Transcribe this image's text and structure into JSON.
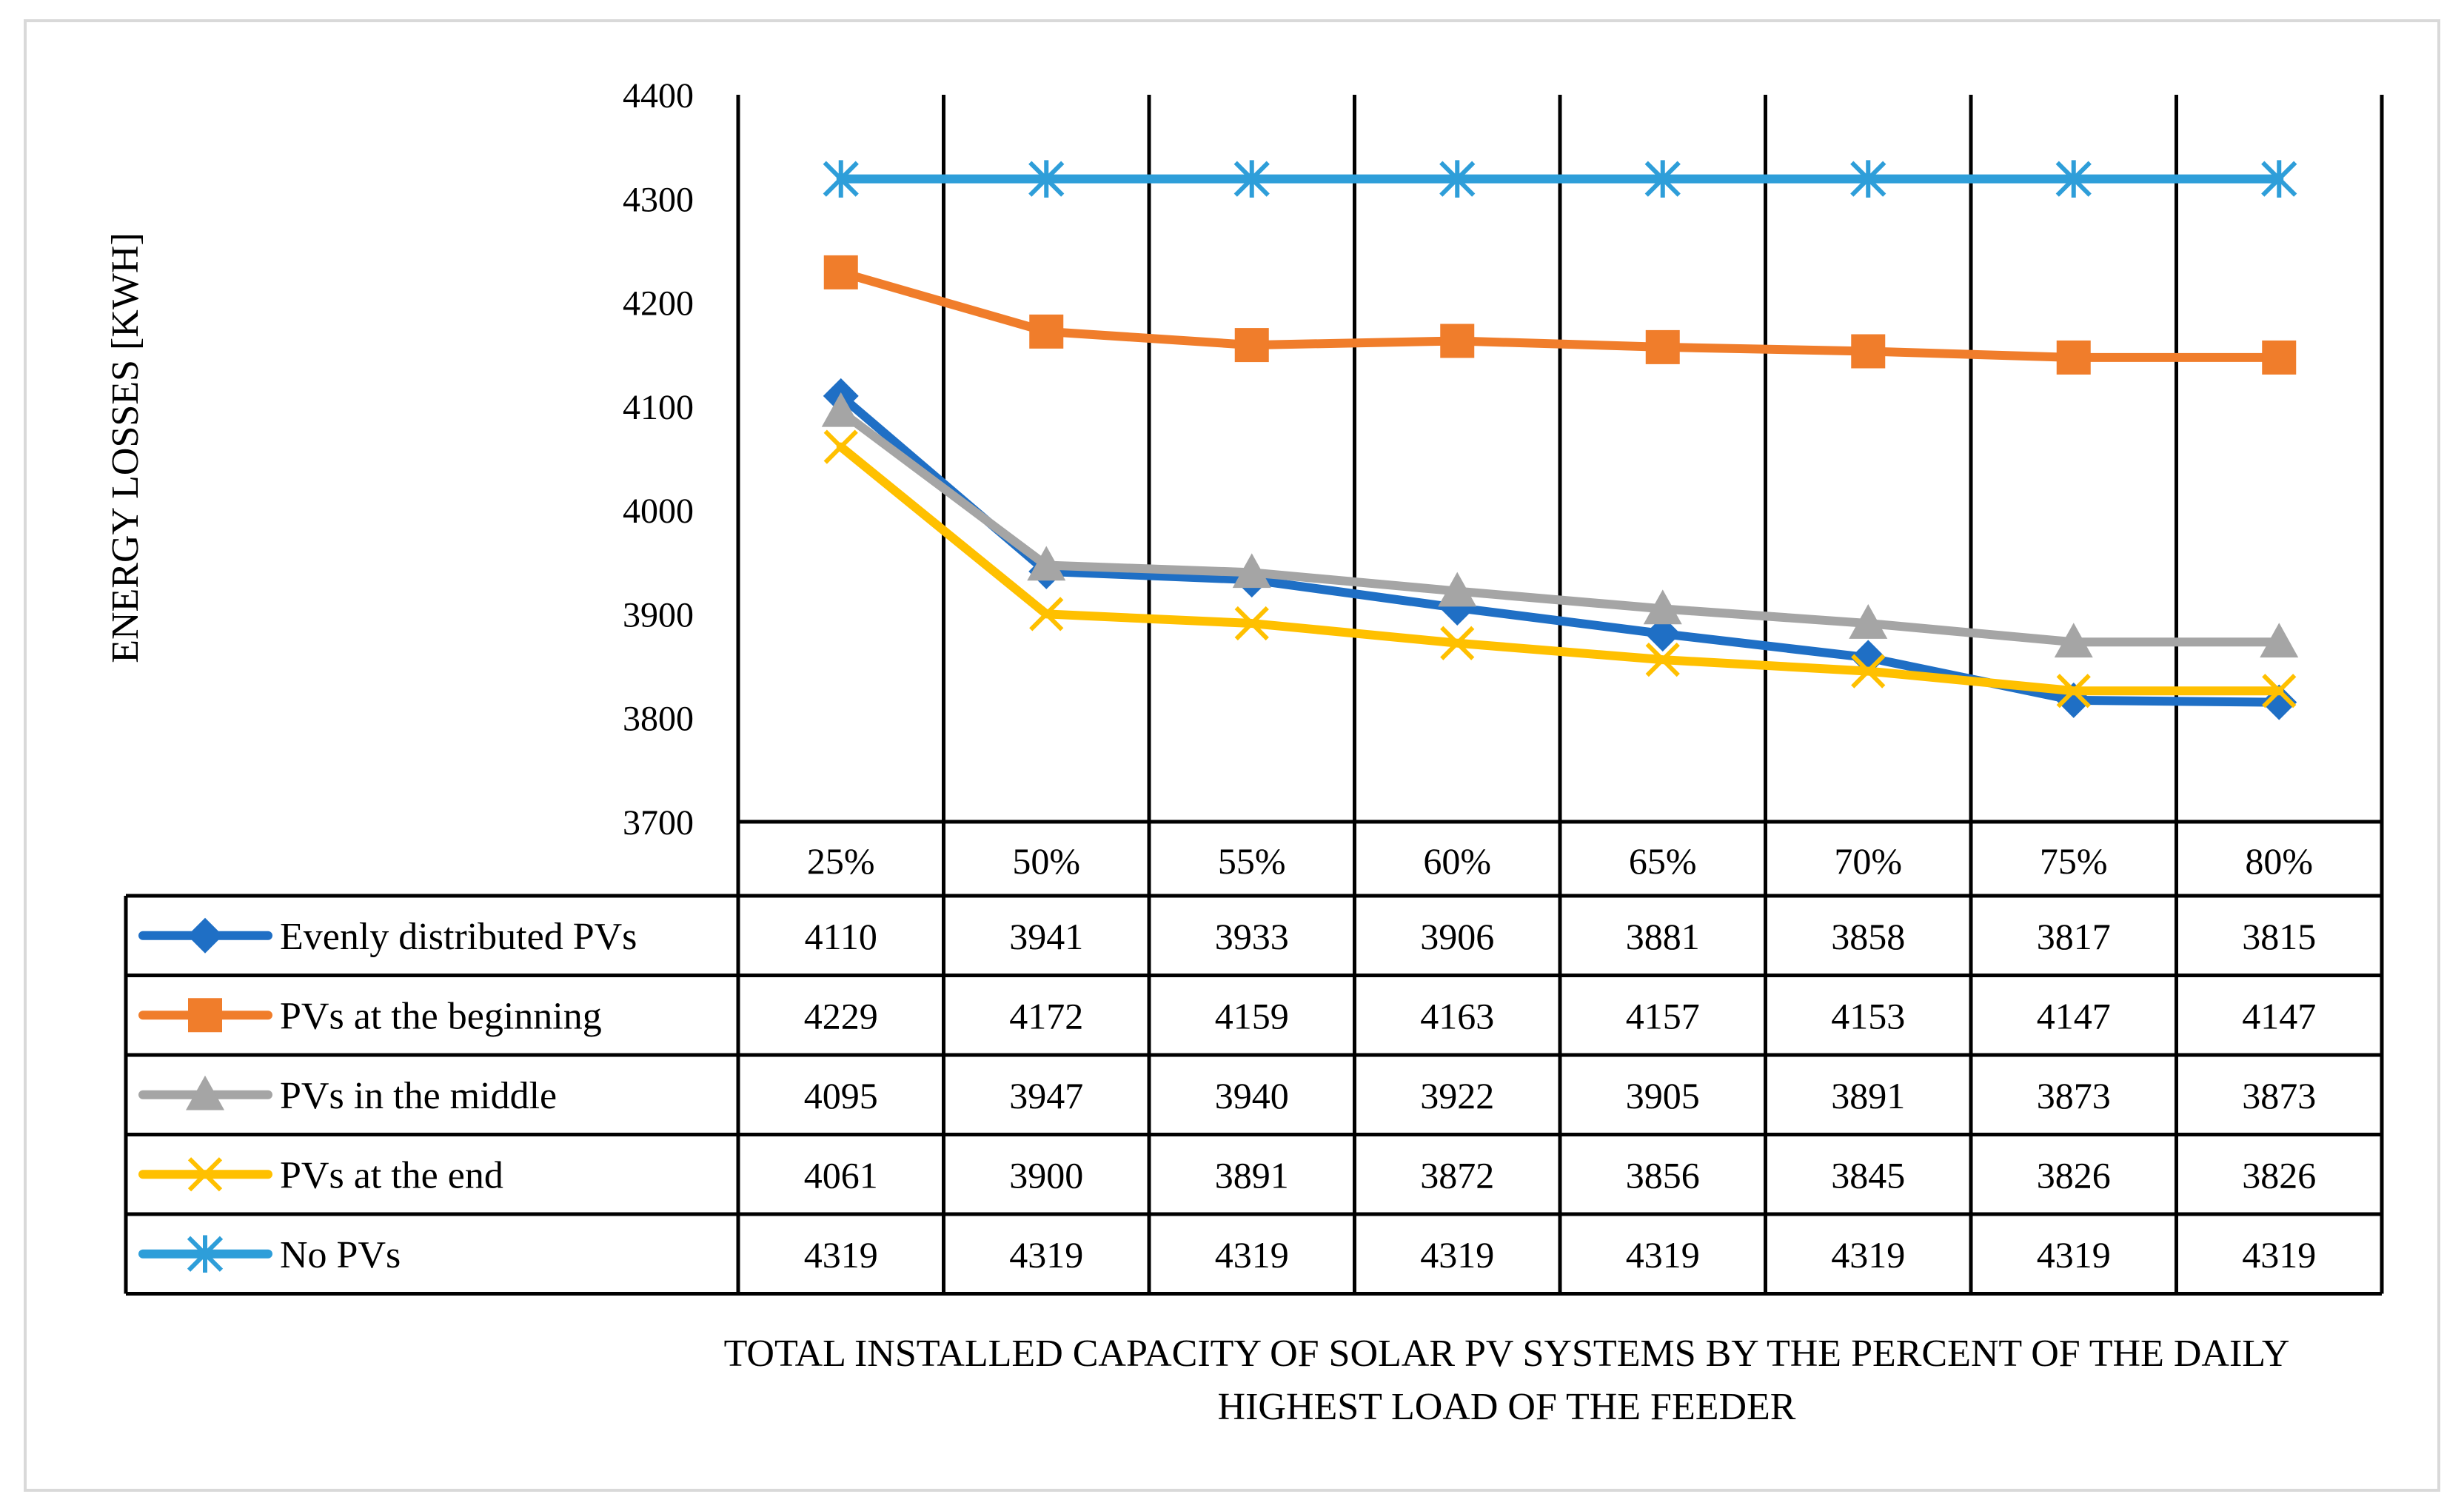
{
  "chart_data": {
    "type": "line",
    "title": "",
    "ylabel": "ENERGY LOSSES [KWH]",
    "xlabel": "TOTAL INSTALLED CAPACITY OF SOLAR PV SYSTEMS BY THE PERCENT OF THE DAILY HIGHEST LOAD OF THE FEEDER",
    "xlabel_lines": [
      "TOTAL INSTALLED CAPACITY OF SOLAR PV SYSTEMS BY THE PERCENT OF THE DAILY",
      "HIGHEST LOAD OF THE FEEDER"
    ],
    "ylim": [
      3700,
      4400
    ],
    "yticks": [
      3700,
      3800,
      3900,
      4000,
      4100,
      4200,
      4300,
      4400
    ],
    "grid": "vertical",
    "legend": "data-table",
    "categories": [
      "25%",
      "50%",
      "55%",
      "60%",
      "65%",
      "70%",
      "75%",
      "80%"
    ],
    "series": [
      {
        "name": "Evenly distributed PVs",
        "color": "#1F6FC5",
        "marker": "diamond",
        "values": [
          4110,
          3941,
          3933,
          3906,
          3881,
          3858,
          3817,
          3815
        ]
      },
      {
        "name": "PVs at the beginning",
        "color": "#F07D2B",
        "marker": "square",
        "values": [
          4229,
          4172,
          4159,
          4163,
          4157,
          4153,
          4147,
          4147
        ]
      },
      {
        "name": "PVs in the middle",
        "color": "#A5A5A5",
        "marker": "triangle",
        "values": [
          4095,
          3947,
          3940,
          3922,
          3905,
          3891,
          3873,
          3873
        ]
      },
      {
        "name": "PVs at the end",
        "color": "#FFC000",
        "marker": "x",
        "values": [
          4061,
          3900,
          3891,
          3872,
          3856,
          3845,
          3826,
          3826
        ]
      },
      {
        "name": "No PVs",
        "color": "#2E9ED9",
        "marker": "asterisk",
        "values": [
          4319,
          4319,
          4319,
          4319,
          4319,
          4319,
          4319,
          4319
        ]
      }
    ]
  }
}
